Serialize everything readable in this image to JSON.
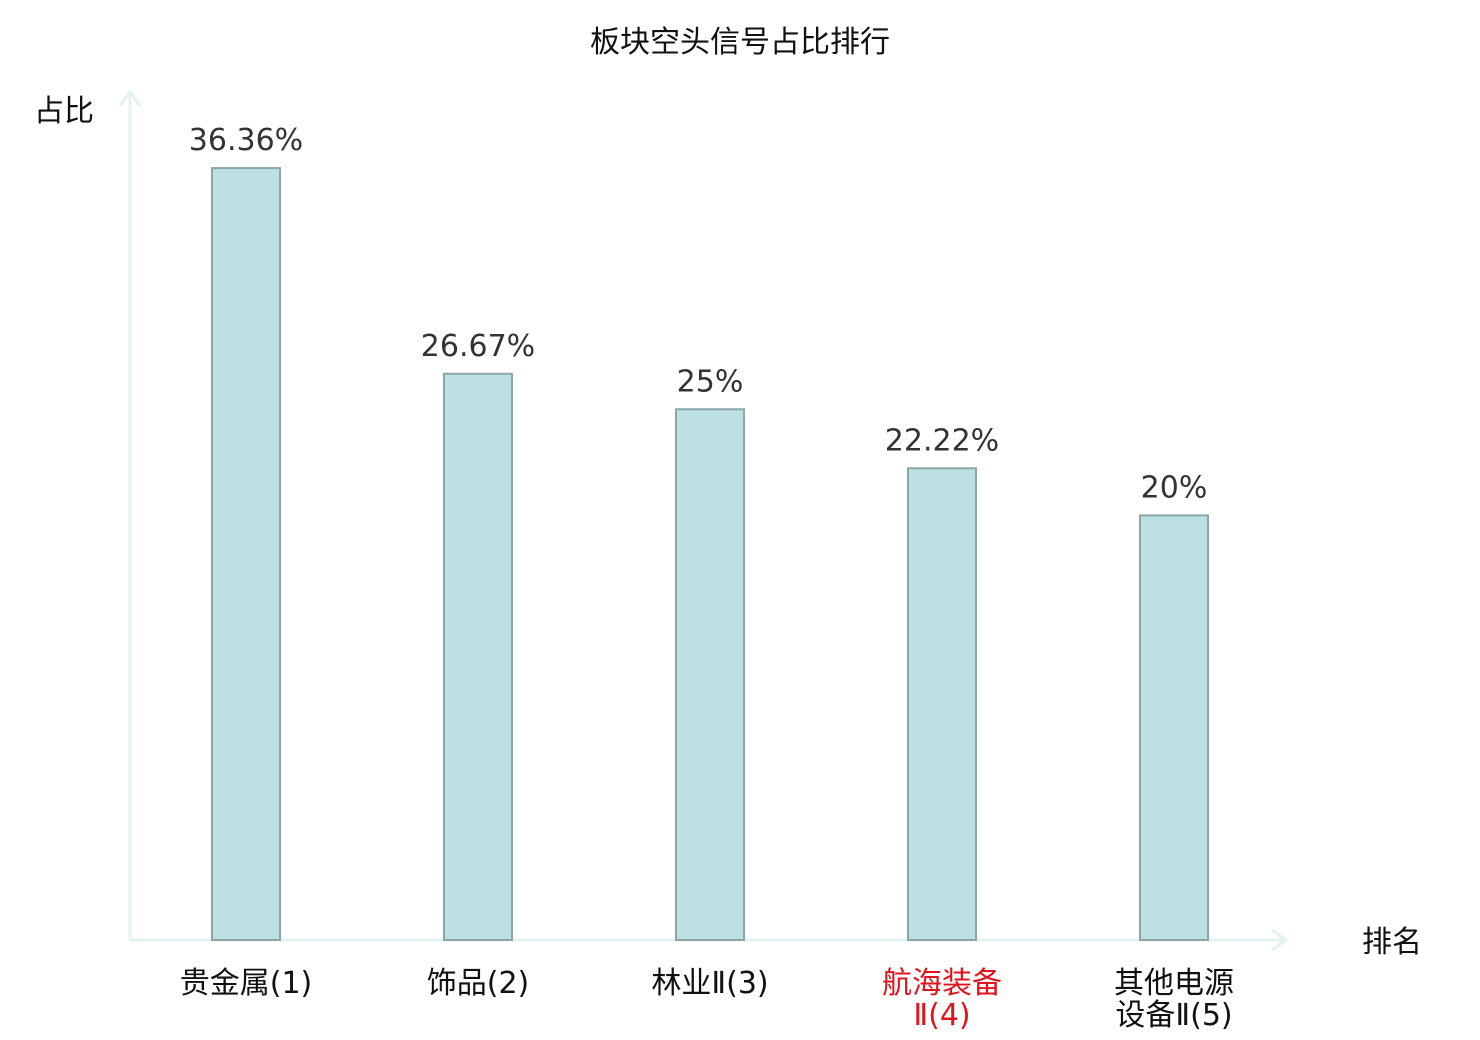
{
  "chart_data": {
    "type": "bar",
    "title": "板块空头信号占比排行",
    "ylabel": "占比",
    "xlabel": "排名",
    "ylim": [
      0,
      40
    ],
    "grid": false,
    "legend": "none",
    "categories": [
      {
        "lines": [
          "贵金属(1)"
        ],
        "highlight": false
      },
      {
        "lines": [
          "饰品(2)"
        ],
        "highlight": false
      },
      {
        "lines": [
          "林业Ⅱ(3)"
        ],
        "highlight": false
      },
      {
        "lines": [
          "航海装备",
          "Ⅱ(4)"
        ],
        "highlight": true
      },
      {
        "lines": [
          "其他电源",
          "设备Ⅱ(5)"
        ],
        "highlight": false
      }
    ],
    "values": [
      36.36,
      26.67,
      25,
      22.22,
      20
    ],
    "value_labels": [
      "36.36%",
      "26.67%",
      "25%",
      "22.22%",
      "20%"
    ],
    "colors": {
      "bar_fill": "#bde0e2",
      "bar_stroke": "#8aa6a8",
      "axis": "#e3f3f1",
      "label": "#111111",
      "value_label": "#333333",
      "highlight": "#e0141c"
    }
  }
}
